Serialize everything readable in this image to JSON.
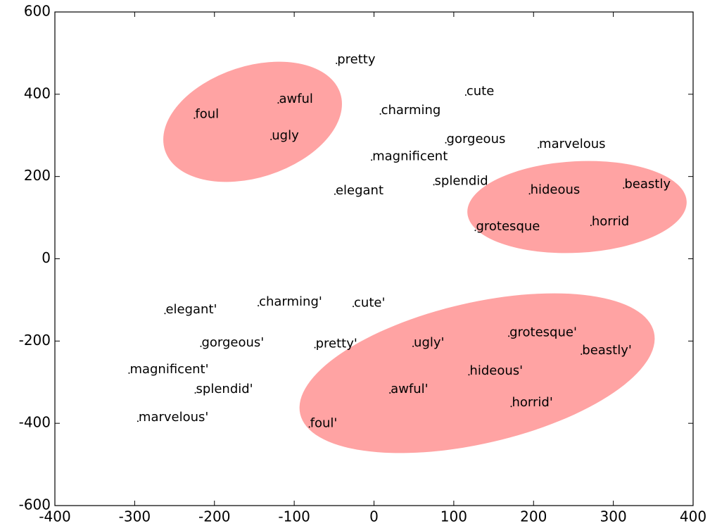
{
  "chart_data": {
    "type": "scatter",
    "labels": [
      "pretty",
      "cute",
      "charming",
      "gorgeous",
      "marvelous",
      "magnificent",
      "splendid",
      "elegant",
      "awful",
      "foul",
      "ugly",
      "hideous",
      "beastly",
      "horrid",
      "grotesque",
      "elegant'",
      "charming'",
      "cute'",
      "gorgeous'",
      "pretty'",
      "ugly'",
      "grotesque'",
      "beastly'",
      "magnificent'",
      "hideous'",
      "splendid'",
      "awful'",
      "horrid'",
      "marvelous'",
      "foul'"
    ],
    "x": [
      -47,
      115,
      8,
      90,
      206,
      -3,
      75,
      -49,
      -120,
      -225,
      -129,
      195,
      313,
      272,
      127,
      -262,
      -145,
      -26,
      -217,
      -74,
      49,
      169,
      260,
      -307,
      119,
      -224,
      20,
      172,
      -296,
      -81
    ],
    "values": [
      475,
      398,
      352,
      282,
      270,
      240,
      180,
      157,
      379,
      342,
      290,
      158,
      172,
      81,
      69,
      -133,
      -114,
      -116,
      -213,
      -216,
      -213,
      -188,
      -232,
      -278,
      -282,
      -326,
      -326,
      -359,
      -395,
      -409
    ],
    "color": "#000000",
    "xlim": [
      -400,
      400
    ],
    "xticks": [
      -400,
      -300,
      -200,
      -100,
      0,
      100,
      200,
      300,
      400
    ],
    "ylim": [
      -600,
      600
    ],
    "yticks": [
      -600,
      -400,
      -200,
      0,
      200,
      400,
      600
    ]
  }
}
